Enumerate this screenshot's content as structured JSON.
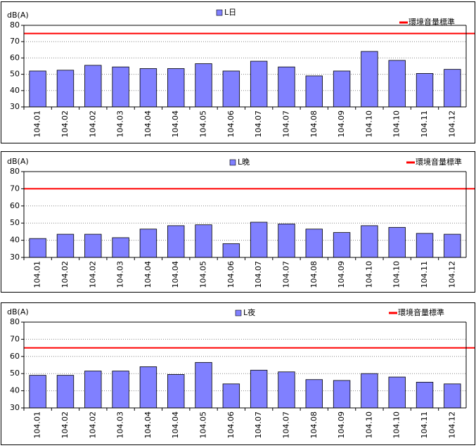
{
  "chart_data": [
    {
      "type": "bar",
      "ylabel": "dB(A)",
      "categories": [
        "104.01",
        "104.02",
        "104.02",
        "104.03",
        "104.04",
        "104.04",
        "104.05",
        "104.06",
        "104.07",
        "104.07",
        "104.08",
        "104.09",
        "104.10",
        "104.10",
        "104.11",
        "104.12"
      ],
      "series": [
        {
          "name": "L日",
          "color": "#8080ff",
          "values": [
            52,
            52.5,
            55.5,
            54.5,
            53.5,
            53.5,
            56.5,
            52,
            58,
            54.5,
            49,
            52,
            64,
            58.5,
            50.5,
            53
          ]
        }
      ],
      "reference_line": {
        "name": "環境音量標準",
        "color": "#ff0000",
        "value": 75
      },
      "ylim": [
        30,
        80
      ],
      "yticks": [
        30,
        40,
        50,
        60,
        70,
        80
      ],
      "grid": true
    },
    {
      "type": "bar",
      "ylabel": "dB(A)",
      "categories": [
        "104.01",
        "104.02",
        "104.02",
        "104.03",
        "104.04",
        "104.04",
        "104.05",
        "104.06",
        "104.07",
        "104.07",
        "104.08",
        "104.09",
        "104.10",
        "104.10",
        "104.11",
        "104.12"
      ],
      "series": [
        {
          "name": "L晚",
          "color": "#8080ff",
          "values": [
            41,
            43.5,
            43.5,
            41.5,
            46.5,
            48.5,
            49,
            38,
            50.5,
            49.5,
            46.5,
            44.5,
            48.5,
            47.5,
            44,
            43.5
          ]
        }
      ],
      "reference_line": {
        "name": "環境音量標準",
        "color": "#ff0000",
        "value": 70
      },
      "ylim": [
        30,
        80
      ],
      "yticks": [
        30,
        40,
        50,
        60,
        70,
        80
      ],
      "grid": true
    },
    {
      "type": "bar",
      "ylabel": "dB(A)",
      "categories": [
        "104.01",
        "104.02",
        "104.02",
        "104.03",
        "104.04",
        "104.04",
        "104.05",
        "104.06",
        "104.07",
        "104.07",
        "104.08",
        "104.09",
        "104.10",
        "104.10",
        "104.11",
        "104.12"
      ],
      "series": [
        {
          "name": "L夜",
          "color": "#8080ff",
          "values": [
            49,
            49,
            51.5,
            51.5,
            54,
            49.5,
            56.5,
            44,
            52,
            51,
            46.5,
            46,
            50,
            48,
            45,
            44
          ]
        }
      ],
      "reference_line": {
        "name": "環境音量標準",
        "color": "#ff0000",
        "value": 65
      },
      "ylim": [
        30,
        80
      ],
      "yticks": [
        30,
        40,
        50,
        60,
        70,
        80
      ],
      "grid": true
    }
  ]
}
